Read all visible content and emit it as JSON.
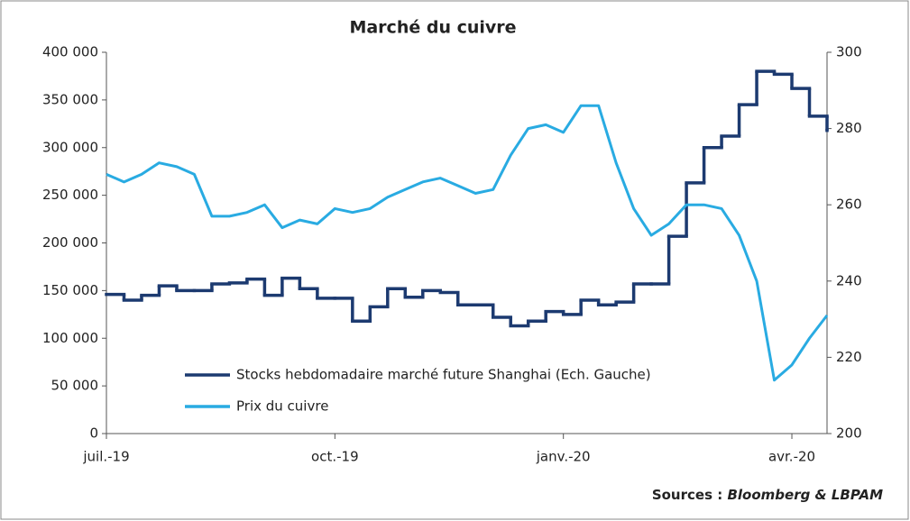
{
  "chart_data": {
    "type": "line",
    "title": "Marché du cuivre",
    "source_label": "Sources :",
    "source_name": "Bloomberg & LBPAM",
    "categories": [
      "juil.-19",
      null,
      null,
      null,
      null,
      null,
      null,
      null,
      null,
      null,
      null,
      null,
      null,
      "oct.-19",
      null,
      null,
      null,
      null,
      null,
      null,
      null,
      null,
      null,
      null,
      null,
      null,
      "janv.-20",
      null,
      null,
      null,
      null,
      null,
      null,
      null,
      null,
      null,
      null,
      null,
      null,
      "avr.-20",
      null,
      null
    ],
    "series": [
      {
        "name": "Stocks hebdomadaire marché future Shanghai (Ech. Gauche)",
        "color": "#1c3a70",
        "drawstyle": "steps-post",
        "values": [
          146000,
          140000,
          145000,
          155000,
          150000,
          150000,
          157000,
          158000,
          162000,
          145000,
          163000,
          152000,
          142000,
          142000,
          118000,
          133000,
          152000,
          143000,
          150000,
          148000,
          135000,
          135000,
          122000,
          113000,
          118000,
          128000,
          125000,
          140000,
          135000,
          138000,
          157000,
          157000,
          207000,
          263000,
          300000,
          312000,
          345000,
          380000,
          377000,
          362000,
          333000,
          318000
        ]
      },
      {
        "name": "Prix du cuivre",
        "color": "#29abe2",
        "axis": "y2",
        "values": [
          268,
          266,
          268,
          271,
          270,
          268,
          257,
          257,
          258,
          260,
          254,
          256,
          255,
          259,
          258,
          259,
          262,
          264,
          266,
          267,
          265,
          263,
          264,
          273,
          280,
          281,
          279,
          286,
          286,
          271,
          259,
          252,
          255,
          260,
          260,
          259,
          252,
          240,
          214,
          218,
          225,
          231
        ]
      }
    ],
    "ylim": [
      0,
      400000
    ],
    "yticks": [
      {
        "value": 0,
        "label": "0"
      },
      {
        "value": 50000,
        "label": "50 000"
      },
      {
        "value": 100000,
        "label": "100 000"
      },
      {
        "value": 150000,
        "label": "150 000"
      },
      {
        "value": 200000,
        "label": "200 000"
      },
      {
        "value": 250000,
        "label": "250 000"
      },
      {
        "value": 300000,
        "label": "300 000"
      },
      {
        "value": 350000,
        "label": "350 000"
      },
      {
        "value": 400000,
        "label": "400 000"
      }
    ],
    "y2lim": [
      200,
      300
    ],
    "y2ticks": [
      200,
      220,
      240,
      260,
      280,
      300
    ],
    "legend": "lower left",
    "grid": false
  }
}
